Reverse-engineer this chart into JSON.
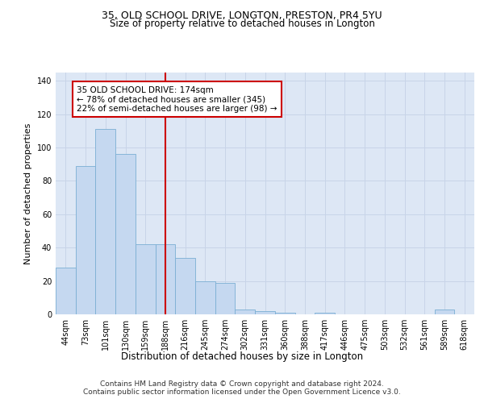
{
  "title1": "35, OLD SCHOOL DRIVE, LONGTON, PRESTON, PR4 5YU",
  "title2": "Size of property relative to detached houses in Longton",
  "xlabel": "Distribution of detached houses by size in Longton",
  "ylabel": "Number of detached properties",
  "footer1": "Contains HM Land Registry data © Crown copyright and database right 2024.",
  "footer2": "Contains public sector information licensed under the Open Government Licence v3.0.",
  "annotation_line1": "35 OLD SCHOOL DRIVE: 174sqm",
  "annotation_line2": "← 78% of detached houses are smaller (345)",
  "annotation_line3": "22% of semi-detached houses are larger (98) →",
  "bar_labels": [
    "44sqm",
    "73sqm",
    "101sqm",
    "130sqm",
    "159sqm",
    "188sqm",
    "216sqm",
    "245sqm",
    "274sqm",
    "302sqm",
    "331sqm",
    "360sqm",
    "388sqm",
    "417sqm",
    "446sqm",
    "475sqm",
    "503sqm",
    "532sqm",
    "561sqm",
    "589sqm",
    "618sqm"
  ],
  "bar_values": [
    28,
    89,
    111,
    96,
    42,
    42,
    34,
    20,
    19,
    3,
    2,
    1,
    0,
    1,
    0,
    0,
    0,
    0,
    0,
    3,
    0
  ],
  "bar_color": "#c5d8f0",
  "bar_edge_color": "#7bafd4",
  "vline_color": "#cc0000",
  "vline_x": 5.0,
  "annotation_box_color": "#cc0000",
  "annotation_box_fill": "#ffffff",
  "grid_color": "#c8d4e8",
  "bg_color": "#dde7f5",
  "ylim": [
    0,
    145
  ],
  "yticks": [
    0,
    20,
    40,
    60,
    80,
    100,
    120,
    140
  ],
  "title1_fontsize": 9.0,
  "title2_fontsize": 8.5,
  "xlabel_fontsize": 8.5,
  "ylabel_fontsize": 8.0,
  "tick_fontsize": 7.0,
  "annotation_fontsize": 7.5,
  "footer_fontsize": 6.5
}
